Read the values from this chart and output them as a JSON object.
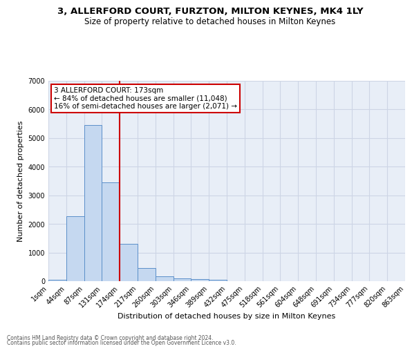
{
  "title1": "3, ALLERFORD COURT, FURZTON, MILTON KEYNES, MK4 1LY",
  "title2": "Size of property relative to detached houses in Milton Keynes",
  "xlabel": "Distribution of detached houses by size in Milton Keynes",
  "ylabel": "Number of detached properties",
  "bar_values": [
    60,
    2270,
    5450,
    3450,
    1310,
    450,
    170,
    95,
    65,
    45,
    0,
    0,
    0,
    0,
    0,
    0,
    0,
    0,
    0,
    0
  ],
  "bar_labels": [
    "1sqm",
    "44sqm",
    "87sqm",
    "131sqm",
    "174sqm",
    "217sqm",
    "260sqm",
    "303sqm",
    "346sqm",
    "389sqm",
    "432sqm",
    "475sqm",
    "518sqm",
    "561sqm",
    "604sqm",
    "648sqm",
    "691sqm",
    "734sqm",
    "777sqm",
    "820sqm",
    "863sqm"
  ],
  "bar_color": "#c5d8f0",
  "bar_edge_color": "#5b8fc9",
  "bar_width": 1.0,
  "vline_color": "#cc0000",
  "annotation_text": "3 ALLERFORD COURT: 173sqm\n← 84% of detached houses are smaller (11,048)\n16% of semi-detached houses are larger (2,071) →",
  "annotation_box_color": "#ffffff",
  "annotation_box_edge": "#cc0000",
  "ylim": [
    0,
    7000
  ],
  "yticks": [
    0,
    1000,
    2000,
    3000,
    4000,
    5000,
    6000,
    7000
  ],
  "grid_color": "#cdd5e5",
  "bg_color": "#e8eef7",
  "footer1": "Contains HM Land Registry data © Crown copyright and database right 2024.",
  "footer2": "Contains public sector information licensed under the Open Government Licence v3.0."
}
